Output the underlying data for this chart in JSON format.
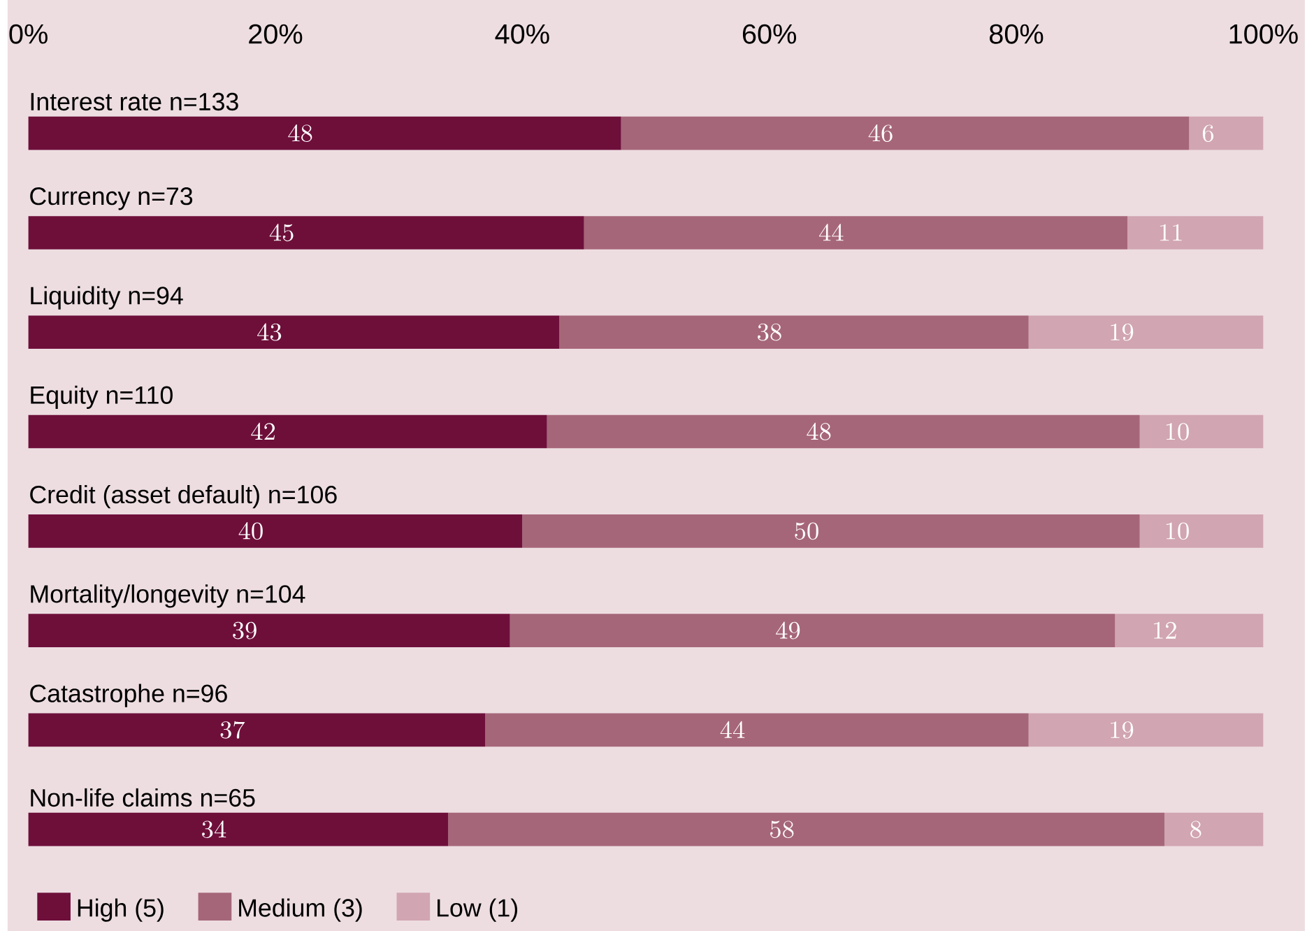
{
  "chart_data": {
    "type": "bar",
    "orientation": "horizontal",
    "stacked": true,
    "data_labels": true,
    "legend": "bottom left",
    "categories": [
      "Interest rate n=133",
      "Currency n=73",
      "Liquidity n=94",
      "Equity n=110",
      "Credit (asset default) n=106",
      "Mortality/longevity n=104",
      "Catastrophe n=96",
      "Non-life claims n=65"
    ],
    "series": [
      {
        "name": "High (5)",
        "color": "#6e0f3a",
        "values": [
          48,
          45,
          43,
          42,
          40,
          39,
          37,
          34
        ]
      },
      {
        "name": "Medium (3)",
        "color": "#a66679",
        "values": [
          46,
          44,
          38,
          48,
          50,
          49,
          44,
          58
        ]
      },
      {
        "name": "Low (1)",
        "color": "#d1a5b2",
        "values": [
          6,
          11,
          19,
          10,
          10,
          12,
          19,
          8
        ]
      }
    ],
    "xlim": [
      0,
      100
    ],
    "xticks": [
      {
        "value": 0,
        "label": "0%"
      },
      {
        "value": 20,
        "label": "20%"
      },
      {
        "value": 40,
        "label": "40%"
      },
      {
        "value": 60,
        "label": "60%"
      },
      {
        "value": 80,
        "label": "80%"
      },
      {
        "value": 100,
        "label": "100%"
      }
    ]
  }
}
